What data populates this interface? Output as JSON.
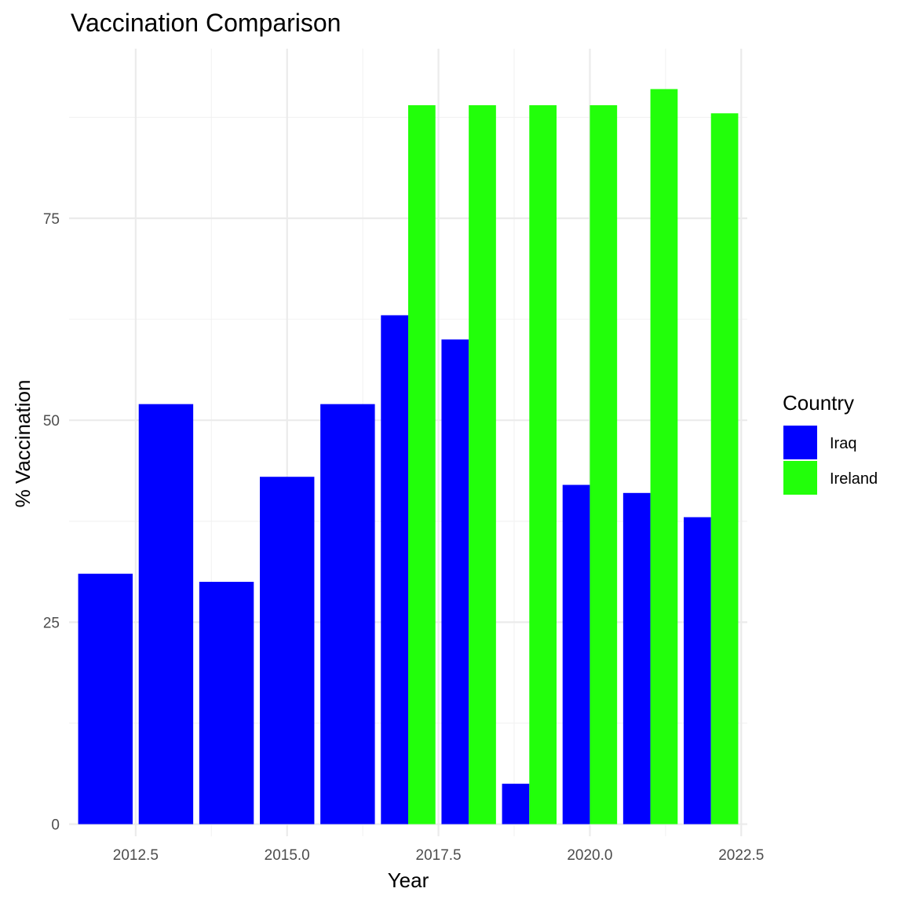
{
  "chart_data": {
    "type": "bar",
    "title": "Vaccination Comparison",
    "xlabel": "Year",
    "ylabel": "% Vaccination",
    "xlim": [
      2011.4,
      2022.6
    ],
    "ylim": [
      -1.5,
      96
    ],
    "x_ticks": [
      2012.5,
      2015.0,
      2017.5,
      2020.0,
      2022.5
    ],
    "y_ticks": [
      0,
      25,
      50,
      75
    ],
    "grid": true,
    "legend": {
      "title": "Country",
      "position": "right"
    },
    "bar_width": 0.9,
    "series": [
      {
        "name": "Iraq",
        "color": "#0000ff",
        "points": [
          {
            "x": 2012,
            "y": 31
          },
          {
            "x": 2013,
            "y": 52
          },
          {
            "x": 2014,
            "y": 30
          },
          {
            "x": 2015,
            "y": 43
          },
          {
            "x": 2016,
            "y": 52
          },
          {
            "x": 2017,
            "y": 63
          },
          {
            "x": 2018,
            "y": 60
          },
          {
            "x": 2019,
            "y": 5
          },
          {
            "x": 2020,
            "y": 42
          },
          {
            "x": 2021,
            "y": 41
          },
          {
            "x": 2022,
            "y": 38
          }
        ]
      },
      {
        "name": "Ireland",
        "color": "#22ff0a",
        "points": [
          {
            "x": 2017,
            "y": 89
          },
          {
            "x": 2018,
            "y": 89
          },
          {
            "x": 2019,
            "y": 89
          },
          {
            "x": 2020,
            "y": 89
          },
          {
            "x": 2021,
            "y": 91
          },
          {
            "x": 2022,
            "y": 88
          }
        ]
      }
    ]
  }
}
